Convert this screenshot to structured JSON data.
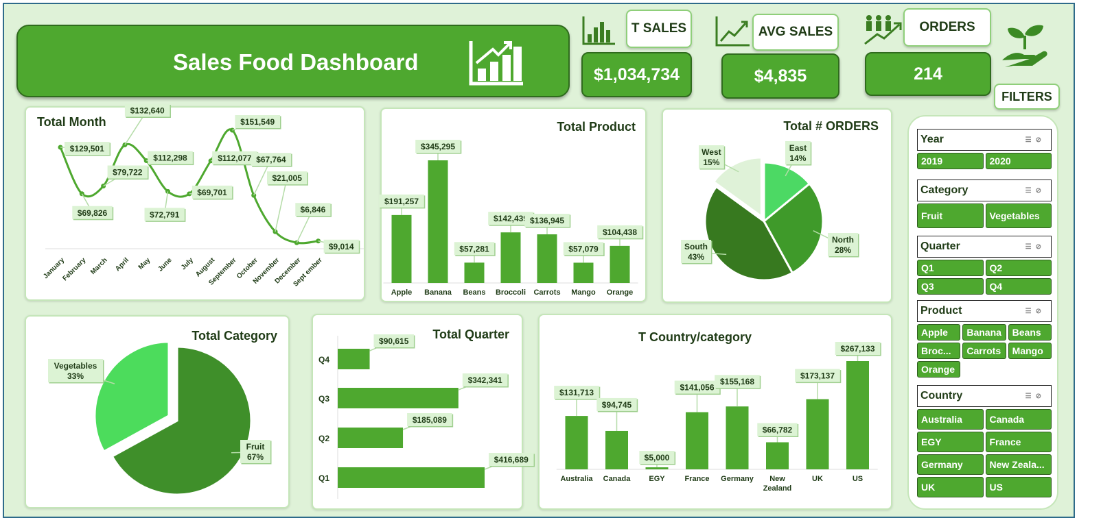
{
  "header": {
    "title": "Sales Food Dashboard"
  },
  "kpis": [
    {
      "label": "T SALES",
      "value": "$1,034,734",
      "icon": "bar-chart-icon"
    },
    {
      "label": "AVG SALES",
      "value": "$4,835",
      "icon": "trend-line-icon"
    },
    {
      "label": "ORDERS",
      "value": "214",
      "icon": "people-growth-icon"
    }
  ],
  "logo_icon": "hand-plant-icon",
  "filters": {
    "label": "FILTERS",
    "slicers": [
      {
        "title": "Year",
        "items": [
          "2019",
          "2020"
        ]
      },
      {
        "title": "Category",
        "items": [
          "Fruit",
          "Vegetables"
        ]
      },
      {
        "title": "Quarter",
        "items": [
          "Q1",
          "Q2",
          "Q3",
          "Q4"
        ]
      },
      {
        "title": "Product",
        "items": [
          "Apple",
          "Banana",
          "Beans",
          "Broc...",
          "Carrots",
          "Mango",
          "Orange"
        ]
      },
      {
        "title": "Country",
        "items": [
          "Australia",
          "Canada",
          "EGY",
          "France",
          "Germany",
          "New Zeala...",
          "UK",
          "US"
        ]
      }
    ]
  },
  "colors": {
    "primary": "#4ea82f",
    "dark": "#2f6b1d",
    "light": "#4cd964",
    "pale": "#dff2d8"
  },
  "chart_data": [
    {
      "id": "month",
      "type": "line",
      "title": "Total Month",
      "categories": [
        "January",
        "February",
        "March",
        "April",
        "May",
        "June",
        "July",
        "August",
        "September",
        "October",
        "November",
        "December",
        "Sept ember"
      ],
      "values": [
        129501,
        69826,
        79722,
        132640,
        112298,
        72791,
        69701,
        112077,
        151549,
        67764,
        21005,
        6846,
        9014
      ],
      "labels": [
        "$129,501",
        "$69,826",
        "$79,722",
        "$132,640",
        "$112,298",
        "$72,791",
        "$69,701",
        "$112,077",
        "$151,549",
        "$67,764",
        "$21,005",
        "$6,846",
        "$9,014"
      ],
      "grid": false
    },
    {
      "id": "product",
      "type": "bar",
      "title": "Total Product",
      "categories": [
        "Apple",
        "Banana",
        "Beans",
        "Broccoli",
        "Carrots",
        "Mango",
        "Orange"
      ],
      "values": [
        191257,
        345295,
        57281,
        142439,
        136945,
        57079,
        104438
      ],
      "labels": [
        "$191,257",
        "$345,295",
        "$57,281",
        "$142,439",
        "$136,945",
        "$57,079",
        "$104,438"
      ]
    },
    {
      "id": "orders",
      "type": "pie",
      "title": "Total # ORDERS",
      "categories": [
        "East",
        "North",
        "South",
        "West"
      ],
      "values": [
        14,
        28,
        43,
        15
      ],
      "labels": [
        "14%",
        "28%",
        "43%",
        "15%"
      ]
    },
    {
      "id": "category",
      "type": "pie",
      "title": "Total Category",
      "categories": [
        "Fruit",
        "Vegetables"
      ],
      "values": [
        67,
        33
      ],
      "labels": [
        "67%",
        "33%"
      ]
    },
    {
      "id": "quarter",
      "type": "bar",
      "orientation": "horizontal",
      "title": "Total Quarter",
      "categories": [
        "Q1",
        "Q2",
        "Q3",
        "Q4"
      ],
      "values": [
        416689,
        185089,
        342341,
        90615
      ],
      "labels": [
        "$416,689",
        "$185,089",
        "$342,341",
        "$90,615"
      ]
    },
    {
      "id": "country",
      "type": "bar",
      "title": "T Country/category",
      "categories": [
        "Australia",
        "Canada",
        "EGY",
        "France",
        "Germany",
        "New Zealand",
        "UK",
        "US"
      ],
      "values": [
        131713,
        94745,
        5000,
        141056,
        155168,
        66782,
        173137,
        267133
      ],
      "labels": [
        "$131,713",
        "$94,745",
        "$5,000",
        "$141,056",
        "$155,168",
        "$66,782",
        "$173,137",
        "$267,133"
      ]
    }
  ]
}
